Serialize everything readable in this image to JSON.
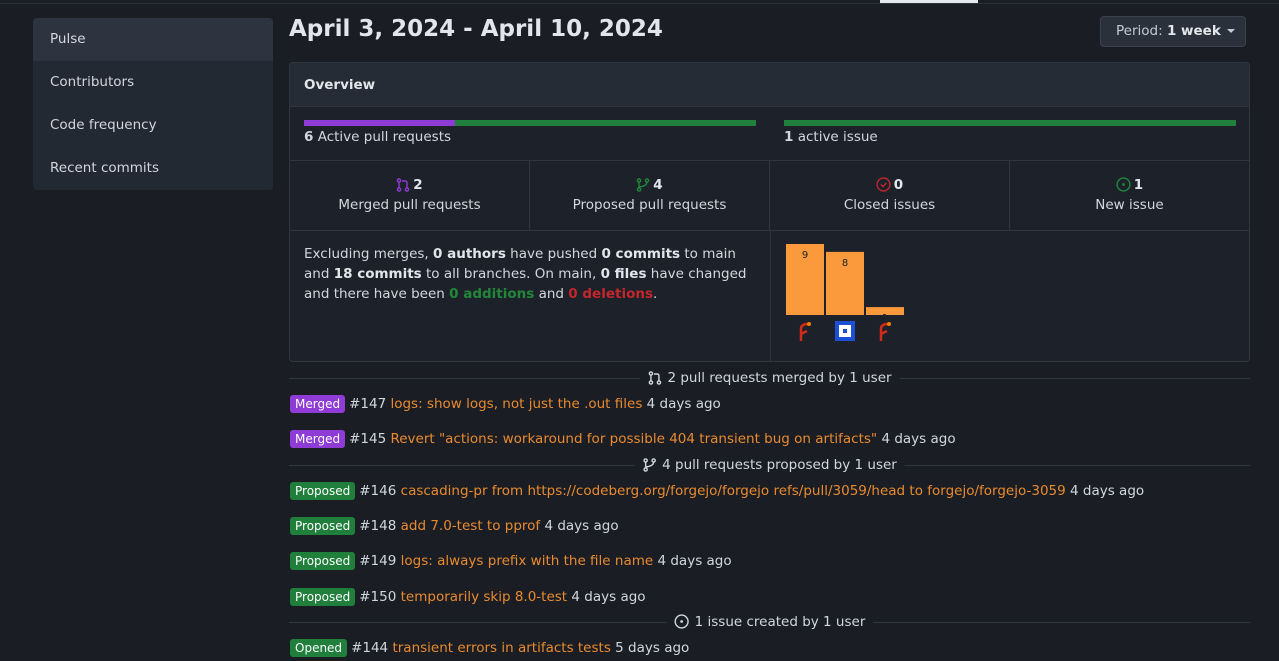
{
  "sidebar": {
    "items": [
      {
        "label": "Pulse",
        "active": true
      },
      {
        "label": "Contributors"
      },
      {
        "label": "Code frequency"
      },
      {
        "label": "Recent commits"
      }
    ]
  },
  "header": {
    "title": "April 3, 2024 - April 10, 2024",
    "period_label": "Period:",
    "period_value": "1 week"
  },
  "overview": {
    "title": "Overview",
    "pr_progress": {
      "merged": 2,
      "proposed": 4,
      "count": "6",
      "label": "Active pull requests"
    },
    "issue_progress": {
      "closed": 0,
      "new": 1,
      "count": "1",
      "label": "active issue"
    },
    "stats": [
      {
        "icon": "git-merge-icon",
        "num": "2",
        "label": "Merged pull requests",
        "color": "#8f3bd6"
      },
      {
        "icon": "git-branch-icon",
        "num": "4",
        "label": "Proposed pull requests",
        "color": "#21883a"
      },
      {
        "icon": "issue-closed-icon",
        "num": "0",
        "label": "Closed issues",
        "color": "#c4262b"
      },
      {
        "icon": "issue-opened-icon",
        "num": "1",
        "label": "New issue",
        "color": "#21883a"
      }
    ],
    "summary": {
      "t1": "Excluding merges, ",
      "authors": "0 authors",
      "t2": " have pushed ",
      "commits_main": "0 commits",
      "t3": " to main and ",
      "commits_all": "18 commits",
      "t4": " to all branches. On main, ",
      "files": "0 files",
      "t5": " have changed and there have been ",
      "additions": "0 additions",
      "t6": " and ",
      "deletions": "0 deletions",
      "t7": "."
    }
  },
  "chart_data": {
    "type": "bar",
    "categories": [
      "contributor-1",
      "contributor-2",
      "contributor-3"
    ],
    "values": [
      9,
      8,
      1
    ],
    "color": "#fa9a3c"
  },
  "merged_section": {
    "title": "2 pull requests merged by 1 user",
    "items": [
      {
        "badge": "Merged",
        "num": "#147",
        "title": "logs: show logs, not just the .out files",
        "time": "4 days ago"
      },
      {
        "badge": "Merged",
        "num": "#145",
        "title": "Revert \"actions: workaround for possible 404 transient bug on artifacts\"",
        "time": "4 days ago"
      }
    ]
  },
  "proposed_section": {
    "title": "4 pull requests proposed by 1 user",
    "items": [
      {
        "badge": "Proposed",
        "num": "#146",
        "title": "cascading-pr from https://codeberg.org/forgejo/forgejo refs/pull/3059/head to forgejo/forgejo-3059",
        "time": "4 days ago"
      },
      {
        "badge": "Proposed",
        "num": "#148",
        "title": "add 7.0-test to pprof",
        "time": "4 days ago"
      },
      {
        "badge": "Proposed",
        "num": "#149",
        "title": "logs: always prefix with the file name",
        "time": "4 days ago"
      },
      {
        "badge": "Proposed",
        "num": "#150",
        "title": "temporarily skip 8.0-test",
        "time": "4 days ago"
      }
    ]
  },
  "issues_section": {
    "title": "1 issue created by 1 user",
    "items": [
      {
        "badge": "Opened",
        "num": "#144",
        "title": "transient errors in artifacts tests",
        "time": "5 days ago"
      }
    ]
  }
}
